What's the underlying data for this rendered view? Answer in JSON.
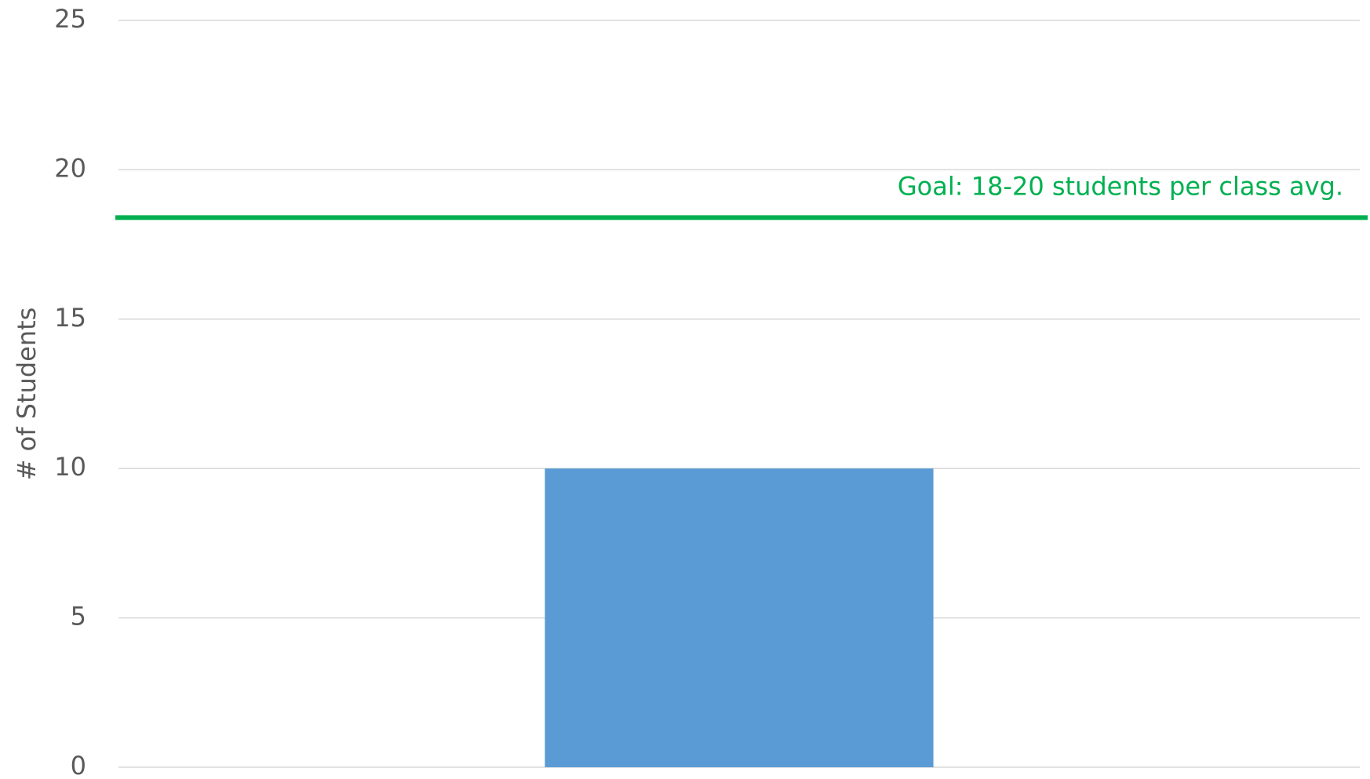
{
  "chart_data": {
    "type": "bar",
    "y_label": "# of Students",
    "categories": [
      null
    ],
    "values": [
      10
    ],
    "color": "#5b9bd5",
    "ylim": [
      0,
      25
    ],
    "yticks": [
      0,
      5,
      10,
      15,
      20,
      25
    ],
    "grid": true,
    "goal_line": {
      "value": 18.4,
      "label": "Goal: 18-20 students per class avg.",
      "color": "#00b050"
    }
  }
}
